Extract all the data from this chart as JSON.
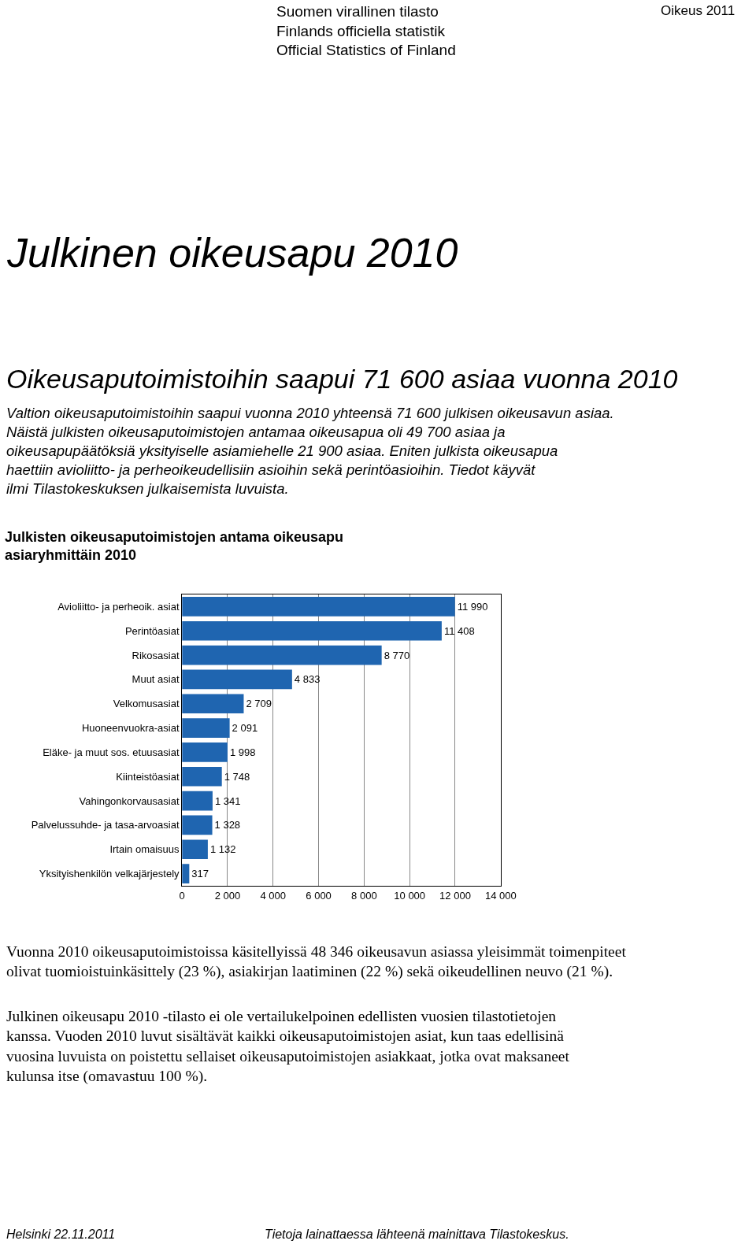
{
  "chart_data": {
    "type": "bar",
    "orientation": "horizontal",
    "title": "Julkisten oikeusaputoimistojen antama oikeusapu asiaryhmittäin 2010",
    "categories": [
      "Avioliitto- ja perheoik. asiat",
      "Perintöasiat",
      "Rikosasiat",
      "Muut asiat",
      "Velkomusasiat",
      "Huoneenvuokra-asiat",
      "Eläke- ja muut sos. etuusasiat",
      "Kiinteistöasiat",
      "Vahingonkorvausasiat",
      "Palvelussuhde- ja tasa-arvoasiat",
      "Irtain omaisuus",
      "Yksityishenkilön velkajärjestely"
    ],
    "values": [
      11990,
      11408,
      8770,
      4833,
      2709,
      2091,
      1998,
      1748,
      1341,
      1328,
      1132,
      317
    ],
    "value_labels": [
      "11 990",
      "11 408",
      "8 770",
      "4 833",
      "2 709",
      "2 091",
      "1 998",
      "1 748",
      "1 341",
      "1 328",
      "1 132",
      "317"
    ],
    "color": "#1f65b0",
    "xlim": [
      0,
      14000
    ],
    "xticks": [
      0,
      {
        "value": 2000,
        "label": "2 000"
      },
      {
        "value": 4000,
        "label": "4 000"
      },
      {
        "value": 6000,
        "label": "6 000"
      },
      {
        "value": 8000,
        "label": "8 000"
      },
      {
        "value": 10000,
        "label": "10 000"
      },
      {
        "value": 12000,
        "label": "12 000"
      },
      {
        "value": 14000,
        "label": "14 000"
      }
    ],
    "grid": "x",
    "legend": false,
    "annotations": [
      "Oikeus 2011",
      "Suomen virallinen tilasto\nFinlands officiella statistik\nOfficial Statistics of Finland",
      "Julkinen oikeusapu 2010",
      "Oikeusaputoimistoihin saapui 71 600 asiaa vuonna 2010",
      "Valtion oikeusaputoimistoihin saapui vuonna 2010 yhteensä 71 600 julkisen oikeusavun asiaa. Näistä julkisten oikeusaputoimistojen antamaa oikeusapua oli 49 700 asiaa ja oikeusapupäätöksiä yksityiselle asiamiehelle 21 900 asiaa. Eniten julkista oikeusapua haettiin avioliitto- ja perheoikeudellisiin asioihin sekä perintöasioihin. Tiedot käyvät ilmi Tilastokeskuksen julkaisemista luvuista.",
      "Vuonna 2010 oikeusaputoimistoissa käsitellyissä 48 346 oikeusavun asiassa yleisimmät toimenpiteet olivat tuomioistuinkäsittely (23 %), asiakirjan laatiminen (22 %) sekä oikeudellinen neuvo (21 %).",
      "Julkinen oikeusapu 2010 -tilasto ei ole vertailukelpoinen edellisten vuosien tilastotietojen kanssa. Vuoden 2010 luvut sisältävät kaikki oikeusaputoimistojen asiat, kun taas edellisinä vuosina luvuista on poistettu sellaiset oikeusaputoimistojen asiakkaat, jotka ovat maksaneet kulunsa itse (omavastuu 100 %).",
      "Helsinki 22.11.2011",
      "Tietoja lainattaessa lähteenä mainittava Tilastokeskus."
    ]
  }
}
